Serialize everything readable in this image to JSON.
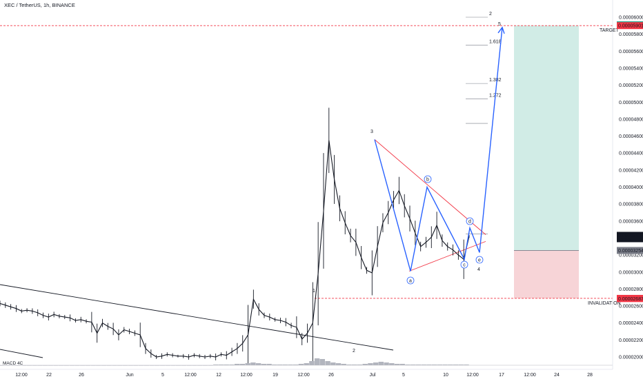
{
  "header": {
    "title": "XEC / TetherUS, 1h, BINANCE"
  },
  "indicator": {
    "label": "MACD 4C"
  },
  "colors": {
    "up_candle": "#26a69a",
    "down_candle": "#ef5350",
    "price_series": "#131722",
    "wave_line": "#2962ff",
    "triangle": "#f23645",
    "target_zone": "#d1ece6",
    "stop_zone": "#f7d4d7",
    "target_line": "#f23645",
    "price_tag": "#131722"
  },
  "chart_data": [
    {
      "type": "line",
      "title": "XEC / TetherUS, 1h, BINANCE",
      "xlabel": "",
      "ylabel": "",
      "x_tick_labels": [
        "12:00",
        "22",
        "26",
        "Jun",
        "5",
        "12:00",
        "12",
        "12:00",
        "19",
        "12:00",
        "26",
        "Jul",
        "5",
        "10",
        "12:00",
        "17",
        "12:00",
        "24",
        "28"
      ],
      "y_tick_labels": [
        "0.00006000",
        "0.00005800",
        "0.00005600",
        "0.00005400",
        "0.00005200",
        "0.00005000",
        "0.00004800",
        "0.00004600",
        "0.00004400",
        "0.00004200",
        "0.00004000",
        "0.00003800",
        "0.00003600",
        "0.00003400",
        "0.00003200",
        "0.00003000",
        "0.00002800",
        "0.00002600",
        "0.00002400",
        "0.00002200",
        "0.00002000"
      ],
      "ylim": [
        1.98e-05,
        6.06e-05
      ],
      "series": [
        {
          "values": [
            2.63e-05,
            2.61e-05,
            2.59e-05,
            2.57e-05,
            2.54e-05,
            2.55e-05,
            2.54e-05,
            2.52e-05,
            2.49e-05,
            2.47e-05,
            2.5e-05,
            2.48e-05,
            2.47e-05,
            2.46e-05,
            2.43e-05,
            2.44e-05,
            2.42e-05,
            2.41e-05,
            2.28e-05,
            2.4e-05,
            2.36e-05,
            2.33e-05,
            2.26e-05,
            2.32e-05,
            2.3e-05,
            2.28e-05,
            2.26e-05,
            2.1e-05,
            2.04e-05,
            2e-05,
            2.01e-05,
            2.03e-05,
            2.02e-05,
            2.01e-05,
            2.01e-05,
            2e-05,
            2.02e-05,
            2.01e-05,
            2e-05,
            2.01e-05,
            2e-05,
            2.03e-05,
            2.02e-05,
            2.06e-05,
            2.1e-05,
            2.16e-05,
            2.26e-05,
            2.68e-05,
            2.56e-05,
            2.49e-05,
            2.47e-05,
            2.44e-05,
            2.43e-05,
            2.41e-05,
            2.37e-05,
            2.35e-05,
            2.21e-05,
            2.28e-05,
            2.4e-05,
            2.98e-05,
            3.72e-05,
            4.55e-05,
            4.09e-05,
            3.75e-05,
            3.58e-05,
            3.43e-05,
            3.35e-05,
            3.17e-05,
            3.02e-05,
            2.99e-05,
            3.3e-05,
            3.58e-05,
            3.7e-05,
            3.85e-05,
            3.96e-05,
            3.78e-05,
            3.63e-05,
            3.46e-05,
            3.3e-05,
            3.35e-05,
            3.41e-05,
            3.55e-05,
            3.37e-05,
            3.3e-05,
            3.26e-05,
            3.2e-05,
            3.15e-05,
            3.42e-05
          ]
        }
      ],
      "drawing": {
        "wave_labels": [
          "1",
          "2",
          "3",
          "4",
          "5"
        ],
        "subwave_labels": [
          "a",
          "b",
          "c",
          "d",
          "e"
        ],
        "fib_labels": [
          "2",
          "1.618",
          "1.382",
          "1.272"
        ],
        "target": {
          "label": "TARGET",
          "price": "0.00005901",
          "price_high": "0.00005910"
        },
        "invalidation": {
          "label": "INVALIDATION",
          "price": "0.00002690",
          "price_low": "0.00002687"
        },
        "entry_price": "0.00003254",
        "current_price": "0.00003424",
        "countdown": "13:55",
        "wave_path": [
          [
            4.56e-05,
            3.01e-05
          ],
          [
            3.01e-05,
            4e-05
          ],
          [
            4e-05,
            3.15e-05
          ],
          [
            3.15e-05,
            3.52e-05
          ],
          [
            3.52e-05,
            3.23e-05
          ],
          [
            3.23e-05,
            5.88e-05
          ]
        ]
      }
    },
    {
      "type": "bar",
      "title": "MACD 4C",
      "values": [
        0,
        0,
        0,
        0,
        0,
        0,
        0,
        0,
        0,
        0,
        0,
        0,
        0,
        0,
        0,
        0,
        0,
        0,
        0,
        0,
        0,
        0,
        0,
        0,
        0,
        0,
        0,
        0,
        0,
        0,
        0,
        0,
        0,
        0,
        0,
        0,
        0,
        0,
        0,
        0,
        0.1,
        0.1,
        0.1,
        0.1,
        0.2,
        0.2,
        0.3,
        0.4,
        0.3,
        0.2,
        0.2,
        0.1,
        0.1,
        0.1,
        0.1,
        0.1,
        0.2,
        0.3,
        0.6,
        1.0,
        0.9,
        0.6,
        0.4,
        0.3,
        0.2,
        0.1,
        0.1,
        0.1,
        0.2,
        0.3,
        0.4,
        0.5,
        0.4,
        0.3,
        0.2,
        0.2,
        0.1,
        0.1,
        0.1,
        0.1,
        0.1,
        0.1,
        0.1,
        0.1,
        0.1,
        0.1,
        0.1,
        0.1
      ]
    }
  ]
}
